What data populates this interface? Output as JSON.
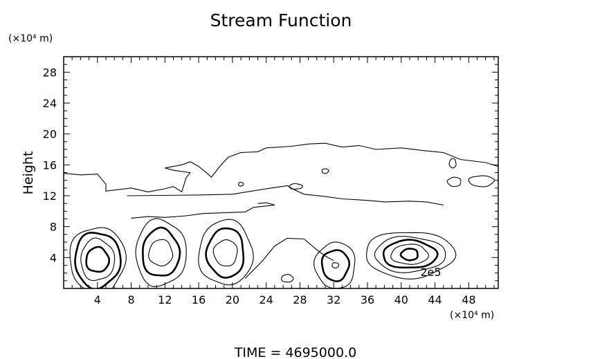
{
  "chart_data": {
    "type": "contour",
    "title": "Stream Function",
    "ylabel": "Height",
    "y_unit_label": "(×10⁴ m)",
    "x_unit_label": "(×10⁴ m)",
    "footer": "TIME  =  4695000.0",
    "contour_label": "2e5",
    "xlim": [
      0,
      51.5
    ],
    "ylim": [
      0,
      30
    ],
    "x_tick_labels": [
      4,
      8,
      12,
      16,
      20,
      24,
      28,
      32,
      36,
      40,
      44,
      48
    ],
    "y_tick_labels": [
      4,
      8,
      12,
      16,
      20,
      24,
      28
    ],
    "grid": false,
    "cells": [
      {
        "center": [
          4,
          3.7
        ],
        "levels": [
          {
            "rx": 3.3,
            "ry": 4.3,
            "strong": false
          },
          {
            "rx": 2.7,
            "ry": 3.6,
            "strong": true
          },
          {
            "rx": 2.0,
            "ry": 2.7,
            "strong": false
          },
          {
            "rx": 1.35,
            "ry": 1.6,
            "strong": true
          }
        ]
      },
      {
        "center": [
          11.5,
          4.6
        ],
        "levels": [
          {
            "rx": 3.0,
            "ry": 4.3,
            "strong": false
          },
          {
            "rx": 2.2,
            "ry": 3.1,
            "strong": true
          },
          {
            "rx": 1.4,
            "ry": 1.7,
            "strong": false
          }
        ]
      },
      {
        "center": [
          19.2,
          4.6
        ],
        "levels": [
          {
            "rx": 3.2,
            "ry": 4.2,
            "strong": false
          },
          {
            "rx": 2.2,
            "ry": 3.2,
            "strong": true
          },
          {
            "rx": 1.4,
            "ry": 1.7,
            "strong": false
          }
        ]
      },
      {
        "center": [
          32.2,
          3.0
        ],
        "levels": [
          {
            "rx": 2.4,
            "ry": 3.0,
            "strong": false
          },
          {
            "rx": 1.6,
            "ry": 2.0,
            "strong": true
          },
          {
            "rx": 0.4,
            "ry": 0.35,
            "strong": false
          }
        ]
      },
      {
        "center": [
          41.0,
          4.4
        ],
        "levels": [
          {
            "rx": 5.3,
            "ry": 3.0,
            "strong": false
          },
          {
            "rx": 4.2,
            "ry": 2.3,
            "strong": false
          },
          {
            "rx": 3.2,
            "ry": 1.8,
            "strong": true
          },
          {
            "rx": 2.2,
            "ry": 1.3,
            "strong": false
          },
          {
            "rx": 1.0,
            "ry": 0.75,
            "strong": true
          }
        ]
      }
    ],
    "small_loops": [
      {
        "x": 31.0,
        "y": 15.2,
        "rx": 0.4,
        "ry": 0.3
      },
      {
        "x": 21.0,
        "y": 13.5,
        "rx": 0.3,
        "ry": 0.25
      },
      {
        "x": 27.5,
        "y": 13.2,
        "rx": 0.8,
        "ry": 0.35
      },
      {
        "x": 26.5,
        "y": 1.3,
        "rx": 0.7,
        "ry": 0.5
      },
      {
        "x": 46.1,
        "y": 16.2,
        "rx": 0.4,
        "ry": 0.6
      },
      {
        "x": 46.3,
        "y": 13.8,
        "rx": 0.8,
        "ry": 0.6
      },
      {
        "x": 49.5,
        "y": 13.9,
        "rx": 1.5,
        "ry": 0.7
      }
    ],
    "upper_contour": [
      [
        0,
        14.9
      ],
      [
        2,
        14.7
      ],
      [
        4,
        14.8
      ],
      [
        5,
        13.5
      ],
      [
        5,
        12.6
      ],
      [
        6.5,
        12.8
      ],
      [
        8,
        13.0
      ],
      [
        10,
        12.5
      ],
      [
        12,
        12.9
      ],
      [
        13,
        13.2
      ],
      [
        14,
        12.5
      ],
      [
        14.5,
        14.3
      ],
      [
        15,
        15.0
      ],
      [
        13,
        15.3
      ],
      [
        12,
        15.6
      ],
      [
        14,
        16.0
      ],
      [
        15,
        16.4
      ],
      [
        16,
        15.8
      ],
      [
        17,
        14.9
      ],
      [
        17.5,
        14.4
      ],
      [
        18.5,
        15.8
      ],
      [
        19.5,
        17.0
      ],
      [
        21,
        17.6
      ],
      [
        23,
        17.7
      ],
      [
        24,
        18.2
      ],
      [
        27,
        18.4
      ],
      [
        29,
        18.7
      ],
      [
        31,
        18.8
      ],
      [
        33,
        18.3
      ],
      [
        35,
        18.5
      ],
      [
        37,
        18.0
      ],
      [
        40,
        18.2
      ],
      [
        43,
        17.8
      ],
      [
        45,
        17.6
      ],
      [
        47,
        16.7
      ],
      [
        50,
        16.3
      ],
      [
        51.5,
        15.8
      ]
    ],
    "middle_contour": [
      [
        7.5,
        12.0
      ],
      [
        16,
        12.1
      ],
      [
        20,
        12.2
      ],
      [
        24,
        12.9
      ],
      [
        26.5,
        13.3
      ],
      [
        27.5,
        12.7
      ],
      [
        28.5,
        12.2
      ],
      [
        31,
        11.9
      ],
      [
        33,
        11.6
      ],
      [
        36,
        11.4
      ],
      [
        38,
        11.2
      ],
      [
        41,
        11.3
      ],
      [
        43,
        11.2
      ],
      [
        45,
        10.8
      ]
    ],
    "lower_contour": [
      [
        23,
        11.0
      ],
      [
        24,
        11.1
      ],
      [
        25,
        10.8
      ],
      [
        22.5,
        10.5
      ],
      [
        21.5,
        9.9
      ],
      [
        19,
        9.8
      ],
      [
        16.5,
        9.7
      ],
      [
        14.5,
        9.4
      ],
      [
        12,
        9.2
      ],
      [
        10,
        9.3
      ],
      [
        8,
        9.1
      ]
    ],
    "bottom_contour": [
      [
        21.5,
        1.3
      ],
      [
        23.5,
        3.5
      ],
      [
        25,
        5.5
      ],
      [
        26.5,
        6.5
      ],
      [
        28.5,
        6.4
      ],
      [
        30,
        5.0
      ],
      [
        31,
        4.2
      ],
      [
        32,
        3.6
      ]
    ]
  }
}
